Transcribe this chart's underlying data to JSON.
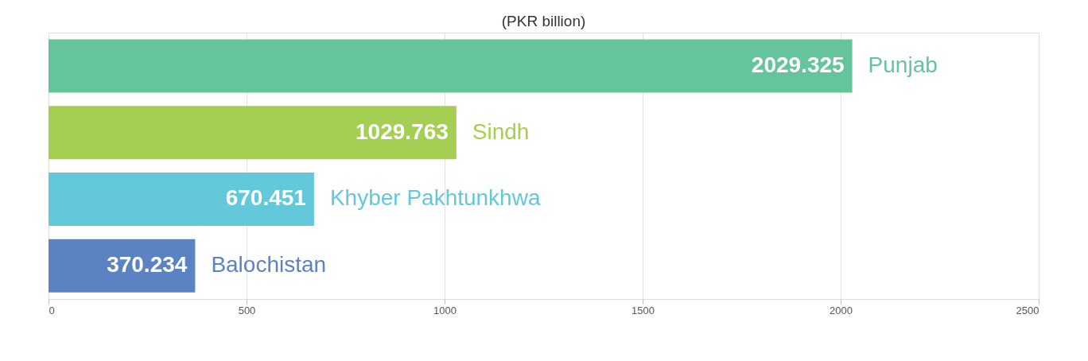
{
  "chart_data": {
    "type": "bar",
    "orientation": "horizontal",
    "title": "(PKR billion)",
    "categories": [
      "Punjab",
      "Sindh",
      "Khyber Pakhtunkhwa",
      "Balochistan"
    ],
    "values": [
      2029.325,
      1029.763,
      670.451,
      370.234
    ],
    "colors": [
      "#66c49d",
      "#a5cf52",
      "#63c8da",
      "#5b83c4"
    ],
    "xlim": [
      0,
      2500
    ],
    "xticks": [
      0,
      500,
      1000,
      1500,
      2000,
      2500
    ],
    "grid": "x",
    "data_labels": true,
    "tick_labels": "x"
  }
}
